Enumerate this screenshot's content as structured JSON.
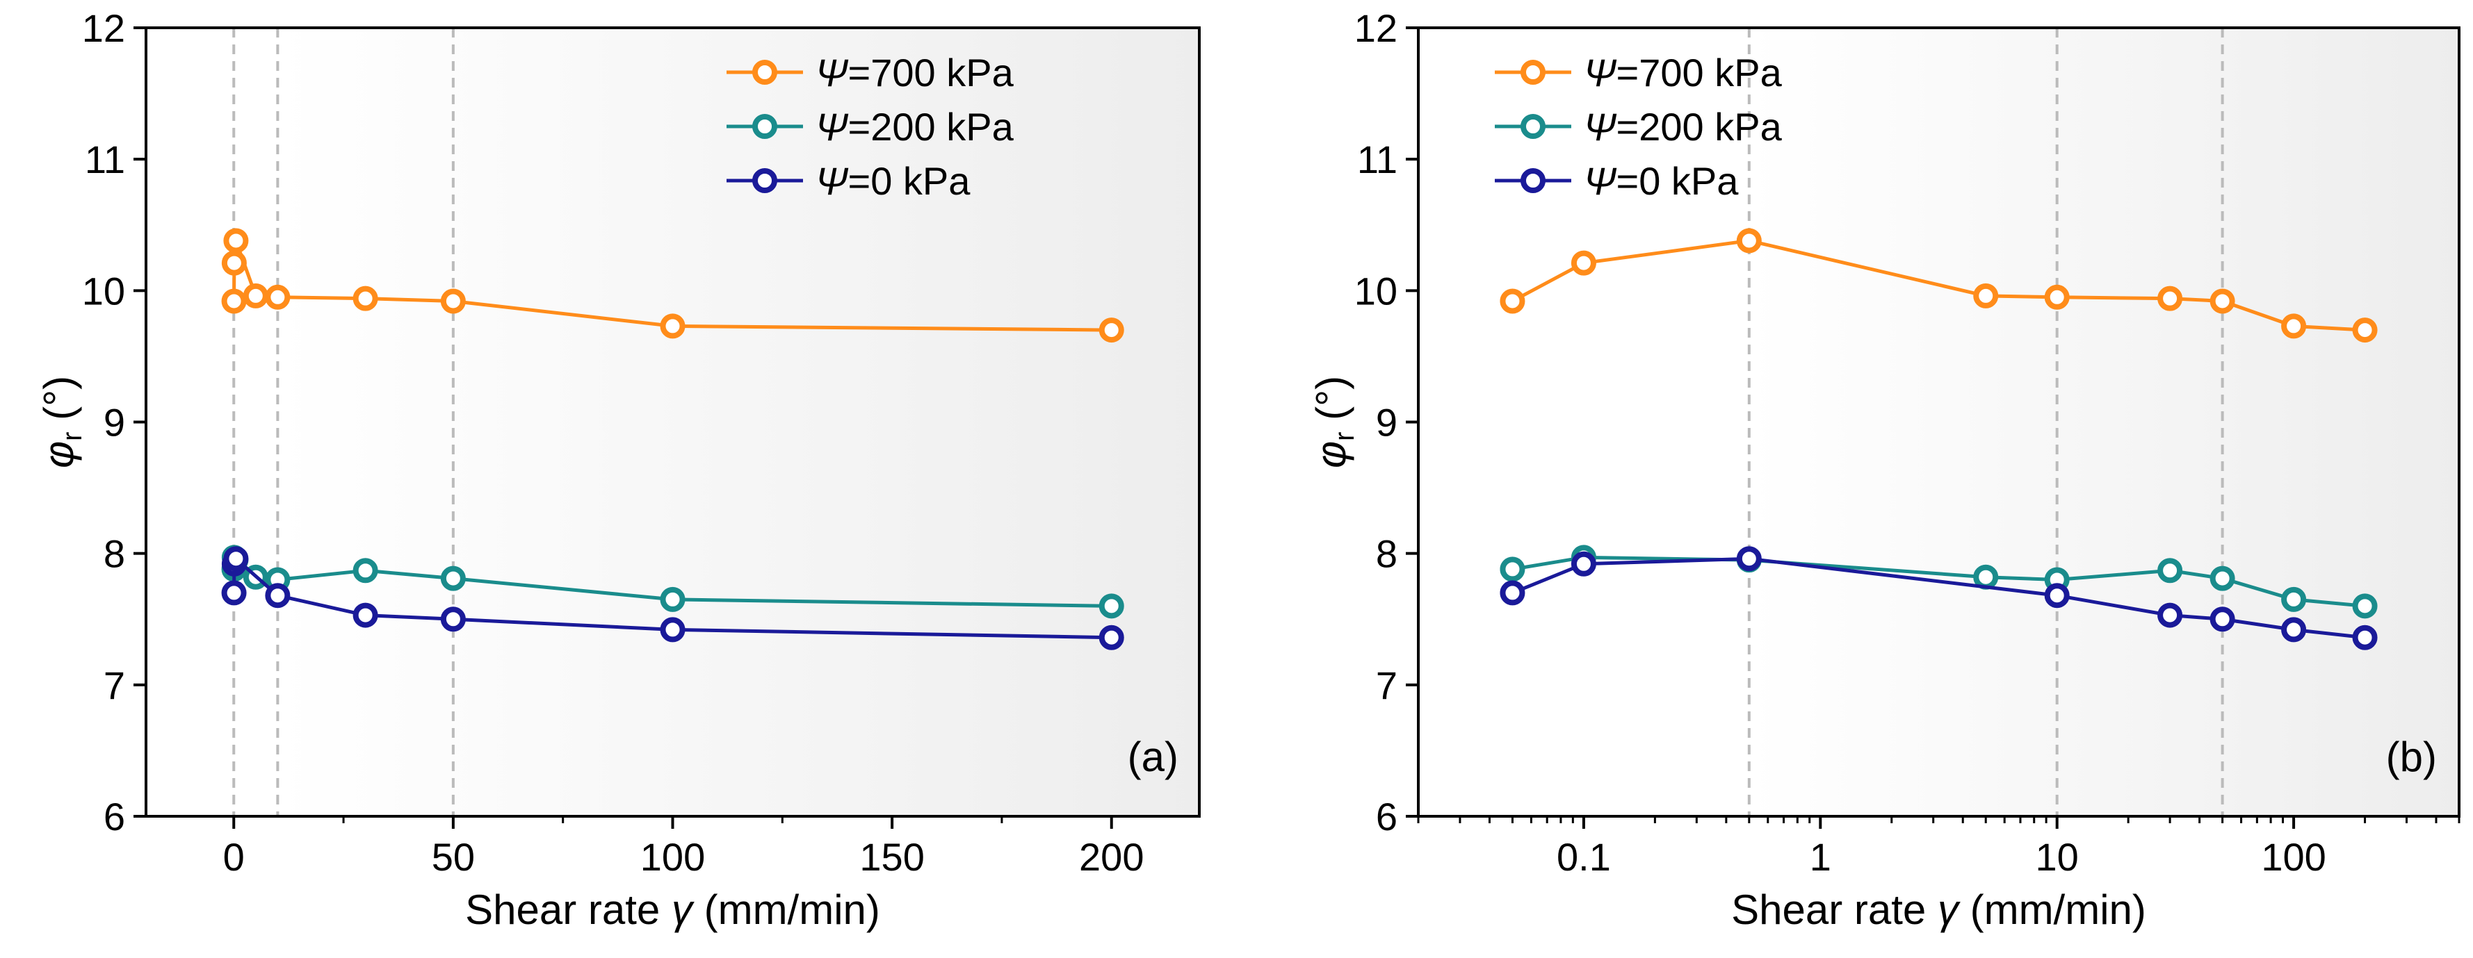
{
  "figure": {
    "y_axis_label": "φ",
    "y_axis_subscript": "r",
    "y_axis_unit": " (°)",
    "x_axis_label_prefix": "Shear rate ",
    "x_axis_symbol": "γ",
    "x_axis_unit": " (mm/min)"
  },
  "colors": {
    "orange": "#FF8C1A",
    "teal": "#1A8C8C",
    "navy": "#1A1A99",
    "grid": "#BBBBBB",
    "shade": "#EFEFEF"
  },
  "chart_data": [
    {
      "type": "line",
      "panel": "(a)",
      "xscale": "linear",
      "xlim": [
        -20,
        220
      ],
      "ylim": [
        6,
        12
      ],
      "xticks": [
        0,
        50,
        100,
        150,
        200
      ],
      "xtick_labels": [
        "0",
        "50",
        "100",
        "150",
        "200"
      ],
      "yticks": [
        6,
        7,
        8,
        9,
        10,
        11,
        12
      ],
      "ytick_labels": [
        "6",
        "7",
        "8",
        "9",
        "10",
        "11",
        "12"
      ],
      "vlines": [
        0,
        10,
        50
      ],
      "shade_from": 10,
      "ylabel": "φr (°)",
      "xlabel": "Shear rate γ̇ (mm/min)",
      "legend_position": "top-right",
      "series": [
        {
          "name": "Ψ=700 kPa",
          "psi": "Ψ",
          "value": "=700 kPa",
          "color": "#FF8C1A",
          "x": [
            0.05,
            0.1,
            0.5,
            5,
            10,
            30,
            50,
            100,
            200
          ],
          "y": [
            9.92,
            10.21,
            10.38,
            9.96,
            9.95,
            9.94,
            9.92,
            9.73,
            9.7
          ]
        },
        {
          "name": "Ψ=200 kPa",
          "psi": "Ψ",
          "value": "=200 kPa",
          "color": "#1A8C8C",
          "x": [
            0.05,
            0.1,
            0.5,
            5,
            10,
            30,
            50,
            100,
            200
          ],
          "y": [
            7.88,
            7.97,
            7.95,
            7.82,
            7.8,
            7.87,
            7.81,
            7.65,
            7.6
          ]
        },
        {
          "name": "Ψ=0 kPa",
          "psi": "Ψ",
          "value": "=0 kPa",
          "color": "#1A1A99",
          "x": [
            0.05,
            0.1,
            0.5,
            10,
            30,
            50,
            100,
            200
          ],
          "y": [
            7.7,
            7.92,
            7.96,
            7.68,
            7.53,
            7.5,
            7.42,
            7.36
          ]
        }
      ]
    },
    {
      "type": "line",
      "panel": "(b)",
      "xscale": "log",
      "xlim": [
        0.02,
        500
      ],
      "ylim": [
        6,
        12
      ],
      "xticks": [
        0.1,
        1,
        10,
        100
      ],
      "xtick_labels": [
        "0.1",
        "1",
        "10",
        "100"
      ],
      "yticks": [
        6,
        7,
        8,
        9,
        10,
        11,
        12
      ],
      "ytick_labels": [
        "6",
        "7",
        "8",
        "9",
        "10",
        "11",
        "12"
      ],
      "vlines": [
        0.5,
        10,
        50
      ],
      "shade_from": 0.5,
      "ylabel": "φr (°)",
      "xlabel": "Shear rate γ̇ (mm/min)",
      "legend_position": "top-left",
      "series": [
        {
          "name": "Ψ=700 kPa",
          "psi": "Ψ",
          "value": "=700 kPa",
          "color": "#FF8C1A",
          "x": [
            0.05,
            0.1,
            0.5,
            5,
            10,
            30,
            50,
            100,
            200
          ],
          "y": [
            9.92,
            10.21,
            10.38,
            9.96,
            9.95,
            9.94,
            9.92,
            9.73,
            9.7
          ]
        },
        {
          "name": "Ψ=200 kPa",
          "psi": "Ψ",
          "value": "=200 kPa",
          "color": "#1A8C8C",
          "x": [
            0.05,
            0.1,
            0.5,
            5,
            10,
            30,
            50,
            100,
            200
          ],
          "y": [
            7.88,
            7.97,
            7.95,
            7.82,
            7.8,
            7.87,
            7.81,
            7.65,
            7.6
          ]
        },
        {
          "name": "Ψ=0 kPa",
          "psi": "Ψ",
          "value": "=0 kPa",
          "color": "#1A1A99",
          "x": [
            0.05,
            0.1,
            0.5,
            10,
            30,
            50,
            100,
            200
          ],
          "y": [
            7.7,
            7.92,
            7.96,
            7.68,
            7.53,
            7.5,
            7.42,
            7.36
          ]
        }
      ]
    }
  ]
}
